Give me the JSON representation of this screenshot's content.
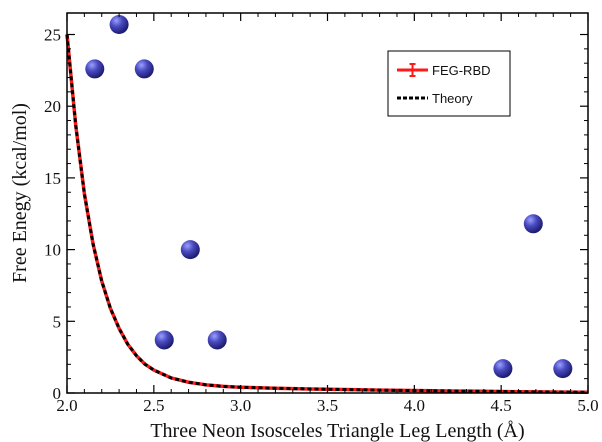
{
  "chart_data": {
    "type": "line",
    "title": "",
    "xlabel": "Three Neon Isosceles Triangle Leg Length (Å)",
    "ylabel": "Free Enegy (kcal/mol)",
    "xlim": [
      2.0,
      5.0
    ],
    "ylim": [
      0,
      26.5
    ],
    "xticks": [
      2.0,
      2.5,
      3.0,
      3.5,
      4.0,
      4.5,
      5.0
    ],
    "xtick_labels": [
      "2.0",
      "2.5",
      "3.0",
      "3.5",
      "4.0",
      "4.5",
      "5.0"
    ],
    "yticks": [
      0,
      5,
      10,
      15,
      20,
      25
    ],
    "ytick_labels": [
      "0",
      "5",
      "10",
      "15",
      "20",
      "25"
    ],
    "grid": false,
    "legend_position": "top-right",
    "legend": [
      {
        "label": "FEG-RBD",
        "color": "#ff1a1a",
        "style": "solid-with-errorbar"
      },
      {
        "label": "Theory",
        "color": "#000000",
        "style": "dashed"
      }
    ],
    "series": [
      {
        "name": "FEG-RBD",
        "color": "#ff1a1a",
        "x": [
          2.0,
          2.05,
          2.1,
          2.15,
          2.2,
          2.25,
          2.3,
          2.35,
          2.4,
          2.45,
          2.5,
          2.6,
          2.7,
          2.8,
          2.9,
          3.0,
          3.2,
          3.4,
          3.6,
          3.8,
          4.0,
          4.2,
          4.4,
          4.6,
          4.8,
          5.0
        ],
        "y": [
          25.0,
          18.7,
          13.9,
          10.4,
          7.8,
          5.9,
          4.5,
          3.4,
          2.6,
          2.0,
          1.6,
          1.05,
          0.75,
          0.57,
          0.46,
          0.4,
          0.33,
          0.28,
          0.24,
          0.2,
          0.17,
          0.14,
          0.12,
          0.09,
          0.07,
          0.05
        ]
      },
      {
        "name": "Theory",
        "color": "#000000",
        "x": [
          2.0,
          2.05,
          2.1,
          2.15,
          2.2,
          2.25,
          2.3,
          2.35,
          2.4,
          2.45,
          2.5,
          2.6,
          2.7,
          2.8,
          2.9,
          3.0,
          3.2,
          3.4,
          3.6,
          3.8,
          4.0,
          4.2,
          4.4,
          4.6,
          4.8,
          5.0
        ],
        "y": [
          25.0,
          18.7,
          13.9,
          10.4,
          7.8,
          5.9,
          4.5,
          3.4,
          2.6,
          2.0,
          1.6,
          1.05,
          0.75,
          0.57,
          0.46,
          0.4,
          0.33,
          0.28,
          0.24,
          0.2,
          0.17,
          0.14,
          0.12,
          0.09,
          0.07,
          0.05
        ]
      }
    ],
    "atom_markers": {
      "color": "#3a3aa0",
      "points": [
        {
          "x": 2.16,
          "y": 22.6
        },
        {
          "x": 2.3,
          "y": 25.7
        },
        {
          "x": 2.445,
          "y": 22.6
        },
        {
          "x": 2.56,
          "y": 3.7
        },
        {
          "x": 2.71,
          "y": 10.0
        },
        {
          "x": 2.865,
          "y": 3.7
        },
        {
          "x": 4.51,
          "y": 1.7
        },
        {
          "x": 4.685,
          "y": 11.8
        },
        {
          "x": 4.855,
          "y": 1.7
        }
      ]
    }
  }
}
